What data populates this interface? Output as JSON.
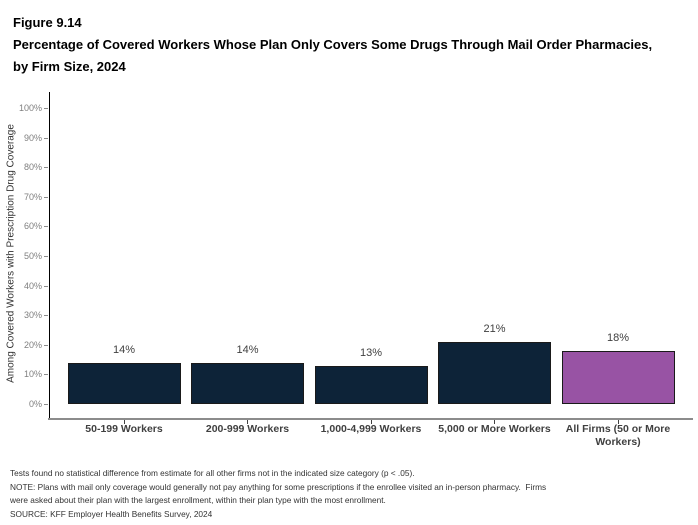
{
  "header": {
    "figure_label": "Figure 9.14",
    "title": "Percentage of Covered Workers Whose Plan Only Covers Some Drugs Through Mail Order Pharmacies, by Firm Size, 2024"
  },
  "chart_data": {
    "type": "bar",
    "title": "Percentage of Covered Workers Whose Plan Only Covers Some Drugs Through Mail Order Pharmacies, by Firm Size, 2024",
    "categories": [
      "50-199 Workers",
      "200-999 Workers",
      "1,000-4,999 Workers",
      "5,000 or More Workers",
      "All Firms (50 or More Workers)"
    ],
    "values": [
      14,
      14,
      13,
      21,
      18
    ],
    "value_labels": [
      "14%",
      "14%",
      "13%",
      "21%",
      "18%"
    ],
    "xlabel": "",
    "ylabel": "Among Covered Workers with Prescription Drug Coverage",
    "ylim": [
      0,
      100
    ],
    "ytick_labels": [
      "0%",
      "10%",
      "20%",
      "30%",
      "40%",
      "50%",
      "60%",
      "70%",
      "80%",
      "90%",
      "100%"
    ],
    "grid": false,
    "legend": false,
    "bar_colors": [
      "#0D2338",
      "#0D2338",
      "#0D2338",
      "#0D2338",
      "#9853A4"
    ]
  },
  "colors": {
    "bar_navy": "#0D2338",
    "bar_purple": "#9853A4",
    "bar_border": "#1A1A1A",
    "x_axis_line": "#8C8C8C",
    "y_axis_line": "#000000",
    "tick_label_gray": "#7F7F7F",
    "text_dark_gray": "#404040"
  },
  "footnotes": {
    "lines": [
      "Tests found no statistical difference from estimate for all other firms not in the indicated size category (p < .05).",
      "NOTE: Plans with mail only coverage would generally not pay anything for some prescriptions if the enrollee visited an in-person pharmacy.  Firms",
      "were asked about their plan with the largest enrollment, within their plan type with the most enrollment.",
      "SOURCE: KFF Employer Health Benefits Survey, 2024"
    ]
  }
}
